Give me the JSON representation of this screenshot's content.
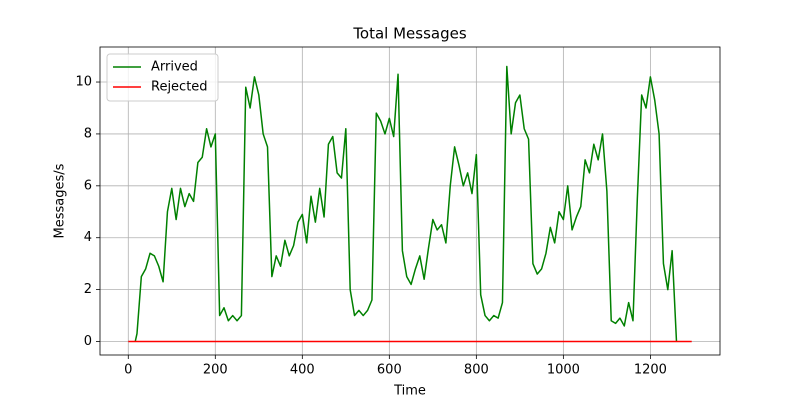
{
  "chart_data": {
    "type": "line",
    "title": "Total Messages",
    "x_label": "Time",
    "y_label": "Messages/s",
    "series": [
      {
        "name": "Arrived",
        "color": "#008000",
        "x": [
          16,
          20,
          30,
          40,
          50,
          60,
          70,
          80,
          90,
          100,
          110,
          120,
          130,
          140,
          150,
          160,
          170,
          180,
          190,
          200,
          210,
          220,
          230,
          240,
          250,
          260,
          270,
          280,
          290,
          300,
          310,
          320,
          330,
          340,
          350,
          360,
          370,
          380,
          390,
          400,
          410,
          420,
          430,
          440,
          450,
          460,
          470,
          480,
          490,
          500,
          510,
          520,
          530,
          540,
          550,
          560,
          570,
          580,
          590,
          600,
          610,
          620,
          630,
          640,
          650,
          660,
          670,
          680,
          690,
          700,
          710,
          720,
          730,
          740,
          750,
          760,
          770,
          780,
          790,
          800,
          810,
          820,
          830,
          840,
          850,
          860,
          870,
          880,
          890,
          900,
          910,
          920,
          930,
          940,
          950,
          960,
          970,
          980,
          990,
          1000,
          1010,
          1020,
          1030,
          1040,
          1050,
          1060,
          1070,
          1080,
          1090,
          1100,
          1110,
          1120,
          1130,
          1140,
          1150,
          1160,
          1170,
          1180,
          1190,
          1200,
          1210,
          1220,
          1230,
          1240,
          1250,
          1260
        ],
        "values": [
          0,
          0.3,
          2.5,
          2.8,
          3.4,
          3.3,
          2.9,
          2.3,
          5.0,
          5.9,
          4.7,
          5.9,
          5.2,
          5.7,
          5.4,
          6.9,
          7.1,
          8.2,
          7.5,
          8.0,
          1.0,
          1.3,
          0.8,
          1.0,
          0.8,
          1.0,
          9.8,
          9.0,
          10.2,
          9.5,
          8.0,
          7.5,
          2.5,
          3.3,
          2.9,
          3.9,
          3.3,
          3.7,
          4.6,
          4.9,
          3.8,
          5.6,
          4.6,
          5.9,
          4.8,
          7.6,
          7.9,
          6.5,
          6.3,
          8.2,
          2.0,
          1.0,
          1.2,
          1.0,
          1.2,
          1.6,
          8.8,
          8.5,
          8.0,
          8.6,
          7.9,
          10.3,
          3.5,
          2.5,
          2.2,
          2.8,
          3.3,
          2.4,
          3.6,
          4.7,
          4.3,
          4.5,
          3.8,
          6.0,
          7.5,
          6.8,
          6.0,
          6.5,
          5.7,
          7.2,
          1.8,
          1.0,
          0.8,
          1.0,
          0.9,
          1.5,
          10.6,
          8.0,
          9.2,
          9.5,
          8.2,
          7.8,
          3.0,
          2.6,
          2.8,
          3.4,
          4.4,
          3.8,
          5.0,
          4.7,
          6.0,
          4.3,
          4.8,
          5.2,
          7.0,
          6.5,
          7.6,
          7.0,
          8.0,
          5.8,
          0.8,
          0.7,
          0.9,
          0.6,
          1.5,
          0.8,
          5.5,
          9.5,
          9.0,
          10.2,
          9.3,
          8.0,
          3.0,
          2.0,
          3.5,
          0
        ]
      },
      {
        "name": "Rejected",
        "color": "#ff0000",
        "x": [
          0,
          1295
        ],
        "values": [
          0,
          0
        ]
      }
    ],
    "xlim": [
      -65,
      1360
    ],
    "ylim": [
      -0.52,
      11.35
    ],
    "xticks": [
      0,
      200,
      400,
      600,
      800,
      1000,
      1200
    ],
    "yticks": [
      0,
      2,
      4,
      6,
      8,
      10
    ],
    "grid": true,
    "legend": "upper left"
  }
}
